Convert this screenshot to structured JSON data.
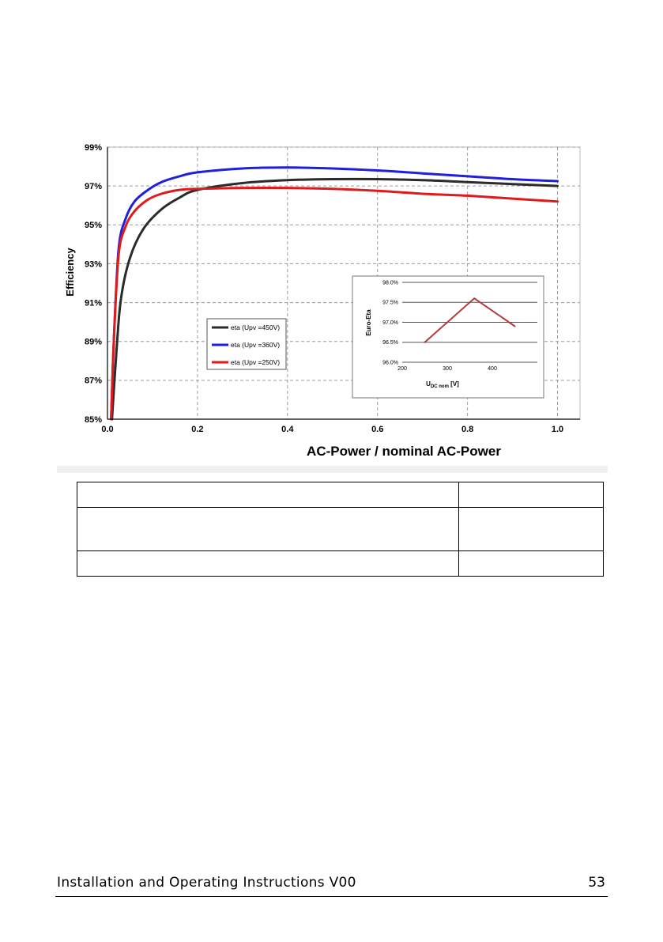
{
  "chart_data": [
    {
      "type": "line",
      "title": "",
      "xlabel": "AC-Power / nominal AC-Power",
      "ylabel": "Efficiency",
      "xlim": [
        0,
        1.05
      ],
      "ylim": [
        85,
        99
      ],
      "x_ticks": [
        "0.0",
        "0.2",
        "0.4",
        "0.6",
        "0.8",
        "1.0"
      ],
      "y_ticks": [
        "85%",
        "87%",
        "89%",
        "91%",
        "93%",
        "95%",
        "97%",
        "99%"
      ],
      "grid": true,
      "legend_position": "center",
      "series": [
        {
          "name": "eta (Upv =450V)",
          "color": "#2b2b2b",
          "x": [
            0.01,
            0.02,
            0.03,
            0.05,
            0.08,
            0.12,
            0.16,
            0.2,
            0.3,
            0.4,
            0.5,
            0.6,
            0.7,
            0.8,
            0.9,
            1.0
          ],
          "y": [
            85.0,
            88.5,
            91.2,
            93.3,
            94.8,
            95.8,
            96.4,
            96.8,
            97.15,
            97.3,
            97.35,
            97.35,
            97.3,
            97.2,
            97.1,
            97.0
          ]
        },
        {
          "name": "eta (Upv =360V)",
          "color": "#1f1fe0",
          "x": [
            0.008,
            0.015,
            0.025,
            0.04,
            0.06,
            0.09,
            0.12,
            0.16,
            0.2,
            0.3,
            0.4,
            0.5,
            0.6,
            0.7,
            0.8,
            0.9,
            1.0
          ],
          "y": [
            85.0,
            89.5,
            93.8,
            95.3,
            96.2,
            96.8,
            97.2,
            97.5,
            97.7,
            97.9,
            97.95,
            97.9,
            97.8,
            97.65,
            97.5,
            97.35,
            97.25
          ]
        },
        {
          "name": "eta (Upv =250V)",
          "color": "#e01a1a",
          "x": [
            0.008,
            0.015,
            0.025,
            0.04,
            0.06,
            0.09,
            0.12,
            0.16,
            0.2,
            0.3,
            0.4,
            0.5,
            0.6,
            0.7,
            0.8,
            0.9,
            1.0
          ],
          "y": [
            85.0,
            89.5,
            93.5,
            94.9,
            95.7,
            96.3,
            96.6,
            96.8,
            96.85,
            96.9,
            96.9,
            96.85,
            96.75,
            96.6,
            96.5,
            96.35,
            96.2
          ]
        }
      ]
    },
    {
      "type": "line",
      "title": "",
      "xlabel": "U_DC nom [V]",
      "ylabel": "Euro-Eta",
      "xlim": [
        200,
        500
      ],
      "ylim": [
        96.0,
        98.0
      ],
      "x_ticks": [
        "200",
        "300",
        "400"
      ],
      "y_ticks": [
        "96.0%",
        "96.5%",
        "97.0%",
        "97.5%",
        "98.0%"
      ],
      "grid": true,
      "series": [
        {
          "name": "",
          "color": "#b03c3c",
          "x": [
            250,
            360,
            450
          ],
          "y": [
            96.5,
            97.6,
            96.9
          ]
        }
      ]
    }
  ],
  "inset": {
    "xlabel_main": "U",
    "xlabel_sub": "DC nom",
    "xlabel_unit": " [V]"
  },
  "footer": {
    "left": "Installation and Operating Instructions V00",
    "page": "53"
  },
  "table": {
    "rows": [
      [
        "",
        ""
      ],
      [
        "",
        ""
      ],
      [
        "",
        ""
      ]
    ]
  }
}
